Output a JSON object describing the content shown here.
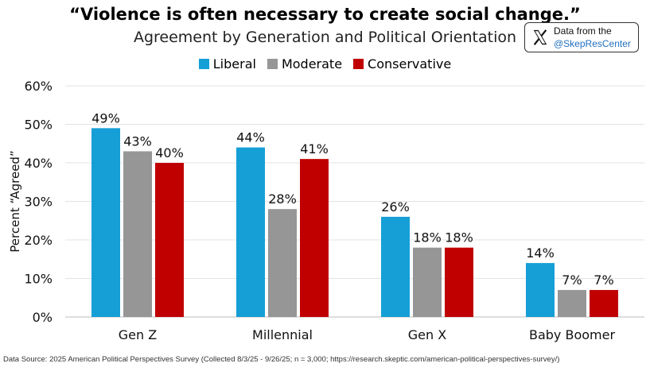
{
  "title": "“Violence is often necessary to create social change.”",
  "subtitle": "Agreement by Generation and Political Orientation",
  "badge": {
    "line1": "Data from the",
    "line2": "@SkepResCenter",
    "icon": "x-logo-icon"
  },
  "footer": "Data Source: 2025 American Political Perspectives Survey (Collected 8/3/25 - 9/26/25; n = 3,000; https://research.skeptic.com/american-political-perspectives-survey/)",
  "chart_data": {
    "type": "bar",
    "categories": [
      "Gen Z",
      "Millennial",
      "Gen X",
      "Baby Boomer"
    ],
    "series": [
      {
        "name": "Liberal",
        "color": "#159fd6",
        "values": [
          49,
          44,
          26,
          14
        ]
      },
      {
        "name": "Moderate",
        "color": "#969696",
        "values": [
          43,
          28,
          18,
          7
        ]
      },
      {
        "name": "Conservative",
        "color": "#c00000",
        "values": [
          40,
          41,
          18,
          7
        ]
      }
    ],
    "data_labels": [
      [
        "49%",
        "44%",
        "26%",
        "14%"
      ],
      [
        "43%",
        "28%",
        "18%",
        "7%"
      ],
      [
        "40%",
        "41%",
        "18%",
        "7%"
      ]
    ],
    "ylabel": "Percent “Agreed”",
    "xlabel": "",
    "ylim": [
      0,
      60
    ],
    "yticks": [
      "0%",
      "10%",
      "20%",
      "30%",
      "40%",
      "50%",
      "60%"
    ],
    "ytick_values": [
      0,
      10,
      20,
      30,
      40,
      50,
      60
    ],
    "grid": true,
    "legend_position": "top-center"
  }
}
